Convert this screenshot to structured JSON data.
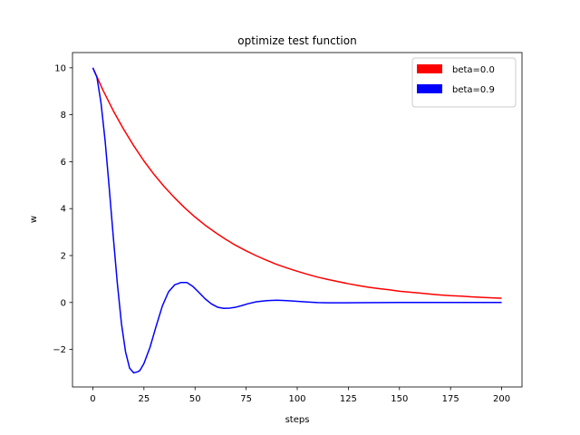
{
  "chart_data": {
    "type": "line",
    "title": "optimize test function",
    "xlabel": "steps",
    "ylabel": "w",
    "xlim": [
      -9.95,
      209.95
    ],
    "ylim": [
      -3.6,
      10.65
    ],
    "xticks": [
      0,
      25,
      50,
      75,
      100,
      125,
      150,
      175,
      200
    ],
    "yticks": [
      -2,
      0,
      2,
      4,
      6,
      8,
      10
    ],
    "legend_position": "top-right",
    "grid": false,
    "series": [
      {
        "name": "beta=0.0",
        "color": "#ff0000",
        "x": [
          0,
          5,
          10,
          15,
          20,
          25,
          30,
          35,
          40,
          45,
          50,
          55,
          60,
          65,
          70,
          75,
          80,
          85,
          90,
          95,
          100,
          105,
          110,
          115,
          120,
          125,
          130,
          135,
          140,
          145,
          150,
          155,
          160,
          165,
          170,
          175,
          180,
          185,
          190,
          195,
          200
        ],
        "y": [
          10.0,
          9.04,
          8.17,
          7.39,
          6.68,
          6.03,
          5.45,
          4.93,
          4.46,
          4.03,
          3.64,
          3.29,
          2.98,
          2.69,
          2.43,
          2.2,
          1.99,
          1.8,
          1.62,
          1.47,
          1.33,
          1.2,
          1.08,
          0.98,
          0.89,
          0.8,
          0.72,
          0.65,
          0.59,
          0.54,
          0.48,
          0.44,
          0.4,
          0.36,
          0.32,
          0.29,
          0.27,
          0.24,
          0.22,
          0.2,
          0.18
        ]
      },
      {
        "name": "beta=0.9",
        "color": "#0000ff",
        "x": [
          0,
          2,
          4,
          6,
          8,
          10,
          12,
          14,
          16,
          18,
          20,
          22,
          23,
          25,
          28,
          31,
          34,
          37,
          40,
          43,
          46,
          49,
          52,
          55,
          58,
          61,
          64,
          67,
          70,
          73,
          76,
          80,
          85,
          90,
          95,
          100,
          105,
          110,
          115,
          120,
          130,
          140,
          150,
          160,
          170,
          180,
          190,
          200
        ],
        "y": [
          10.0,
          9.6,
          8.5,
          6.9,
          4.9,
          2.8,
          0.8,
          -0.9,
          -2.1,
          -2.8,
          -3.0,
          -2.95,
          -2.9,
          -2.6,
          -1.9,
          -1.0,
          -0.15,
          0.45,
          0.75,
          0.85,
          0.85,
          0.68,
          0.42,
          0.15,
          -0.06,
          -0.2,
          -0.25,
          -0.24,
          -0.2,
          -0.13,
          -0.05,
          0.03,
          0.08,
          0.1,
          0.08,
          0.05,
          0.02,
          -0.005,
          -0.015,
          -0.015,
          -0.01,
          -0.002,
          0.003,
          0.003,
          0.001,
          0.0,
          0.0,
          0.0
        ]
      }
    ]
  }
}
